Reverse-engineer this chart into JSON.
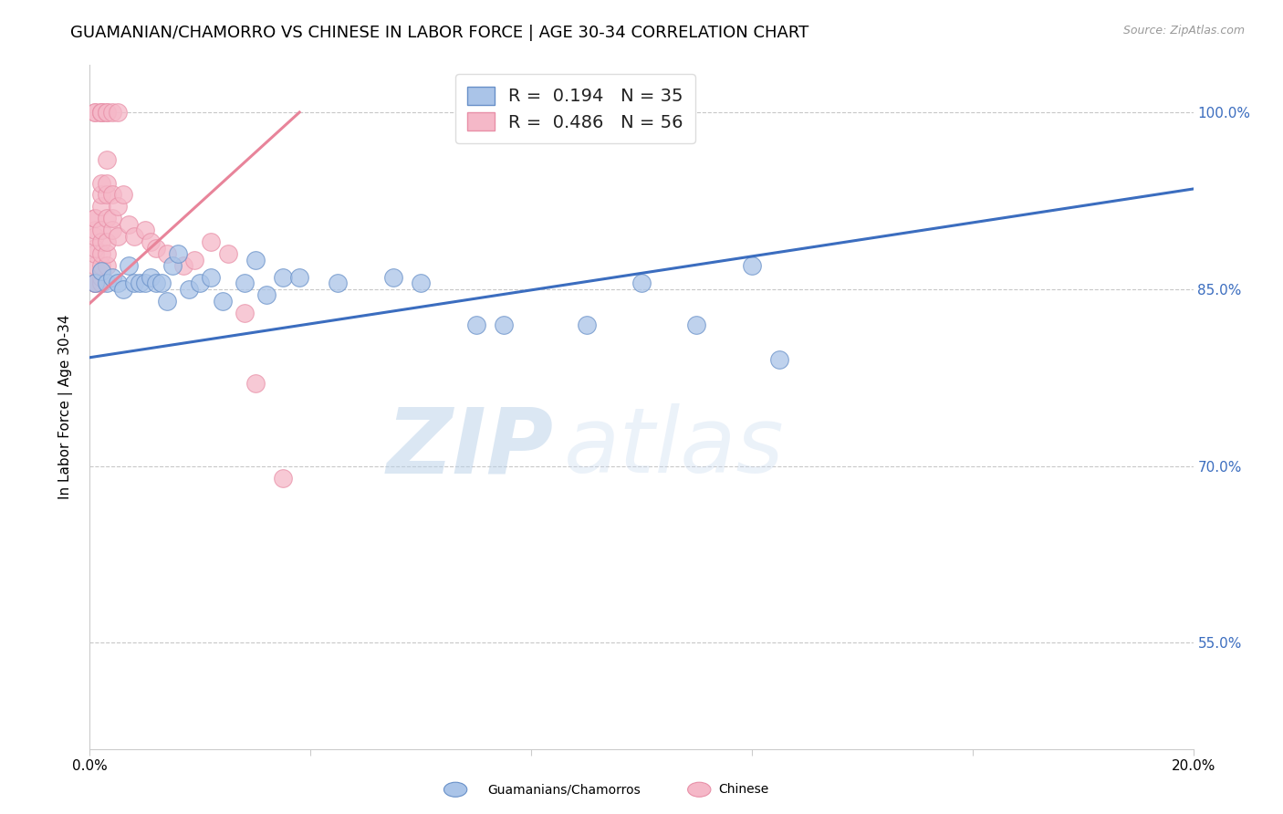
{
  "title": "GUAMANIAN/CHAMORRO VS CHINESE IN LABOR FORCE | AGE 30-34 CORRELATION CHART",
  "source": "Source: ZipAtlas.com",
  "ylabel": "In Labor Force | Age 30-34",
  "xlim": [
    0.0,
    0.2
  ],
  "ylim": [
    0.46,
    1.04
  ],
  "xtick_positions": [
    0.0,
    0.04,
    0.08,
    0.12,
    0.16,
    0.2
  ],
  "xticklabels": [
    "0.0%",
    "",
    "",
    "",
    "",
    "20.0%"
  ],
  "ytick_positions": [
    0.55,
    0.7,
    0.85,
    1.0
  ],
  "yticklabels": [
    "55.0%",
    "70.0%",
    "85.0%",
    "100.0%"
  ],
  "legend_label_blue": "R =  0.194   N = 35",
  "legend_label_pink": "R =  0.486   N = 56",
  "blue_scatter": [
    [
      0.001,
      0.855
    ],
    [
      0.002,
      0.865
    ],
    [
      0.003,
      0.855
    ],
    [
      0.004,
      0.86
    ],
    [
      0.005,
      0.855
    ],
    [
      0.006,
      0.85
    ],
    [
      0.007,
      0.87
    ],
    [
      0.008,
      0.855
    ],
    [
      0.009,
      0.855
    ],
    [
      0.01,
      0.855
    ],
    [
      0.011,
      0.86
    ],
    [
      0.012,
      0.855
    ],
    [
      0.013,
      0.855
    ],
    [
      0.014,
      0.84
    ],
    [
      0.015,
      0.87
    ],
    [
      0.016,
      0.88
    ],
    [
      0.018,
      0.85
    ],
    [
      0.02,
      0.855
    ],
    [
      0.022,
      0.86
    ],
    [
      0.024,
      0.84
    ],
    [
      0.028,
      0.855
    ],
    [
      0.03,
      0.875
    ],
    [
      0.032,
      0.845
    ],
    [
      0.035,
      0.86
    ],
    [
      0.038,
      0.86
    ],
    [
      0.045,
      0.855
    ],
    [
      0.055,
      0.86
    ],
    [
      0.06,
      0.855
    ],
    [
      0.07,
      0.82
    ],
    [
      0.075,
      0.82
    ],
    [
      0.09,
      0.82
    ],
    [
      0.1,
      0.855
    ],
    [
      0.11,
      0.82
    ],
    [
      0.12,
      0.87
    ],
    [
      0.125,
      0.79
    ]
  ],
  "pink_scatter": [
    [
      0.001,
      0.855
    ],
    [
      0.001,
      0.855
    ],
    [
      0.001,
      0.855
    ],
    [
      0.001,
      0.87
    ],
    [
      0.001,
      0.88
    ],
    [
      0.001,
      0.885
    ],
    [
      0.001,
      0.895
    ],
    [
      0.001,
      0.9
    ],
    [
      0.001,
      0.91
    ],
    [
      0.001,
      0.91
    ],
    [
      0.001,
      1.0
    ],
    [
      0.001,
      1.0
    ],
    [
      0.002,
      0.855
    ],
    [
      0.002,
      0.855
    ],
    [
      0.002,
      0.86
    ],
    [
      0.002,
      0.865
    ],
    [
      0.002,
      0.87
    ],
    [
      0.002,
      0.88
    ],
    [
      0.002,
      0.89
    ],
    [
      0.002,
      0.9
    ],
    [
      0.002,
      0.92
    ],
    [
      0.002,
      0.93
    ],
    [
      0.002,
      0.94
    ],
    [
      0.002,
      1.0
    ],
    [
      0.002,
      1.0
    ],
    [
      0.002,
      1.0
    ],
    [
      0.003,
      0.87
    ],
    [
      0.003,
      0.88
    ],
    [
      0.003,
      0.89
    ],
    [
      0.003,
      0.91
    ],
    [
      0.003,
      0.93
    ],
    [
      0.003,
      0.94
    ],
    [
      0.003,
      0.96
    ],
    [
      0.003,
      1.0
    ],
    [
      0.003,
      1.0
    ],
    [
      0.004,
      0.9
    ],
    [
      0.004,
      0.91
    ],
    [
      0.004,
      0.93
    ],
    [
      0.004,
      1.0
    ],
    [
      0.005,
      0.895
    ],
    [
      0.005,
      0.92
    ],
    [
      0.005,
      1.0
    ],
    [
      0.006,
      0.93
    ],
    [
      0.007,
      0.905
    ],
    [
      0.008,
      0.895
    ],
    [
      0.01,
      0.9
    ],
    [
      0.011,
      0.89
    ],
    [
      0.012,
      0.885
    ],
    [
      0.014,
      0.88
    ],
    [
      0.017,
      0.87
    ],
    [
      0.019,
      0.875
    ],
    [
      0.022,
      0.89
    ],
    [
      0.025,
      0.88
    ],
    [
      0.028,
      0.83
    ],
    [
      0.03,
      0.77
    ],
    [
      0.035,
      0.69
    ]
  ],
  "blue_line_x": [
    0.0,
    0.2
  ],
  "blue_line_y": [
    0.792,
    0.935
  ],
  "pink_line_x": [
    0.0,
    0.038
  ],
  "pink_line_y": [
    0.838,
    1.0
  ],
  "blue_line_color": "#3b6dbf",
  "pink_line_color": "#e8849a",
  "blue_scatter_color": "#aac4e8",
  "blue_scatter_edge": "#6890c8",
  "pink_scatter_color": "#f5b8c8",
  "pink_scatter_edge": "#e890a8",
  "watermark_zip": "ZIP",
  "watermark_atlas": "atlas",
  "grid_color": "#c8c8c8",
  "title_fontsize": 13,
  "axis_label_fontsize": 11,
  "tick_fontsize": 11,
  "legend_fontsize": 14
}
